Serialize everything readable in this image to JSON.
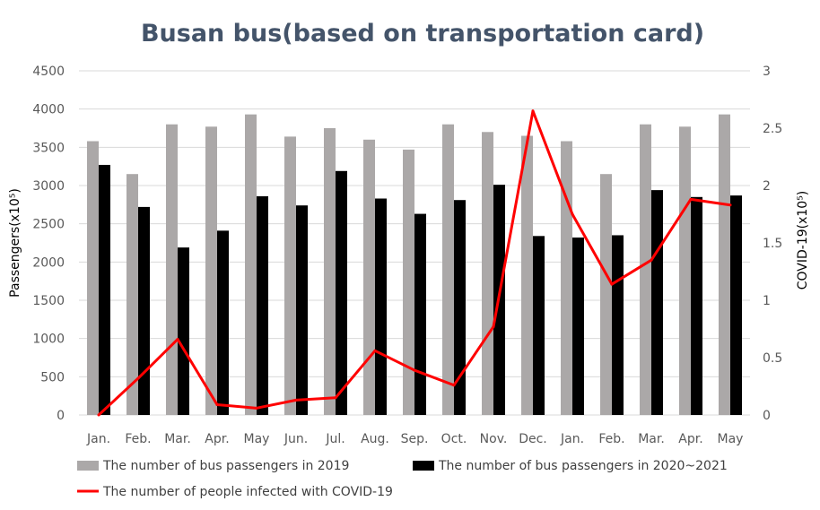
{
  "chart_data": {
    "type": "bar",
    "title": "Busan bus(based on transportation card)",
    "categories": [
      "Jan.",
      "Feb.",
      "Mar.",
      "Apr.",
      "May",
      "Jun.",
      "Jul.",
      "Aug.",
      "Sep.",
      "Oct.",
      "Nov.",
      "Dec.",
      "Jan.",
      "Feb.",
      "Mar.",
      "Apr.",
      "May"
    ],
    "ylabel": "Passengers(x10⁵)",
    "y2label": "COVID-19(x10⁵)",
    "ylim": [
      0,
      4500
    ],
    "yticks": [
      "0",
      "500",
      "1000",
      "1500",
      "2000",
      "2500",
      "3000",
      "3500",
      "4000",
      "4500"
    ],
    "y2lim": [
      0,
      3
    ],
    "y2ticks": [
      "0",
      "0.5",
      "1",
      "1.5",
      "2",
      "2.5",
      "3"
    ],
    "grid": true,
    "legend_position": "bottom",
    "series": [
      {
        "name": "The number of bus passengers in 2019",
        "kind": "bar",
        "axis": "left",
        "color": "#ABA8A8",
        "values": [
          3580,
          3150,
          3800,
          3770,
          3930,
          3640,
          3750,
          3600,
          3470,
          3800,
          3700,
          3650,
          3580,
          3150,
          3800,
          3770,
          3930
        ]
      },
      {
        "name": "The number of bus passengers in 2020~2021",
        "kind": "bar",
        "axis": "left",
        "color": "#000000",
        "values": [
          3270,
          2720,
          2190,
          2410,
          2860,
          2740,
          3190,
          2830,
          2630,
          2810,
          3010,
          2340,
          2320,
          2350,
          2940,
          2850,
          2870
        ]
      },
      {
        "name": "The number of people infected with COVID-19",
        "kind": "line",
        "axis": "right",
        "color": "#FF0000",
        "values": [
          0.0,
          0.32,
          0.66,
          0.09,
          0.06,
          0.13,
          0.15,
          0.56,
          0.39,
          0.26,
          0.77,
          2.65,
          1.75,
          1.14,
          1.35,
          1.88,
          1.83
        ]
      }
    ]
  }
}
